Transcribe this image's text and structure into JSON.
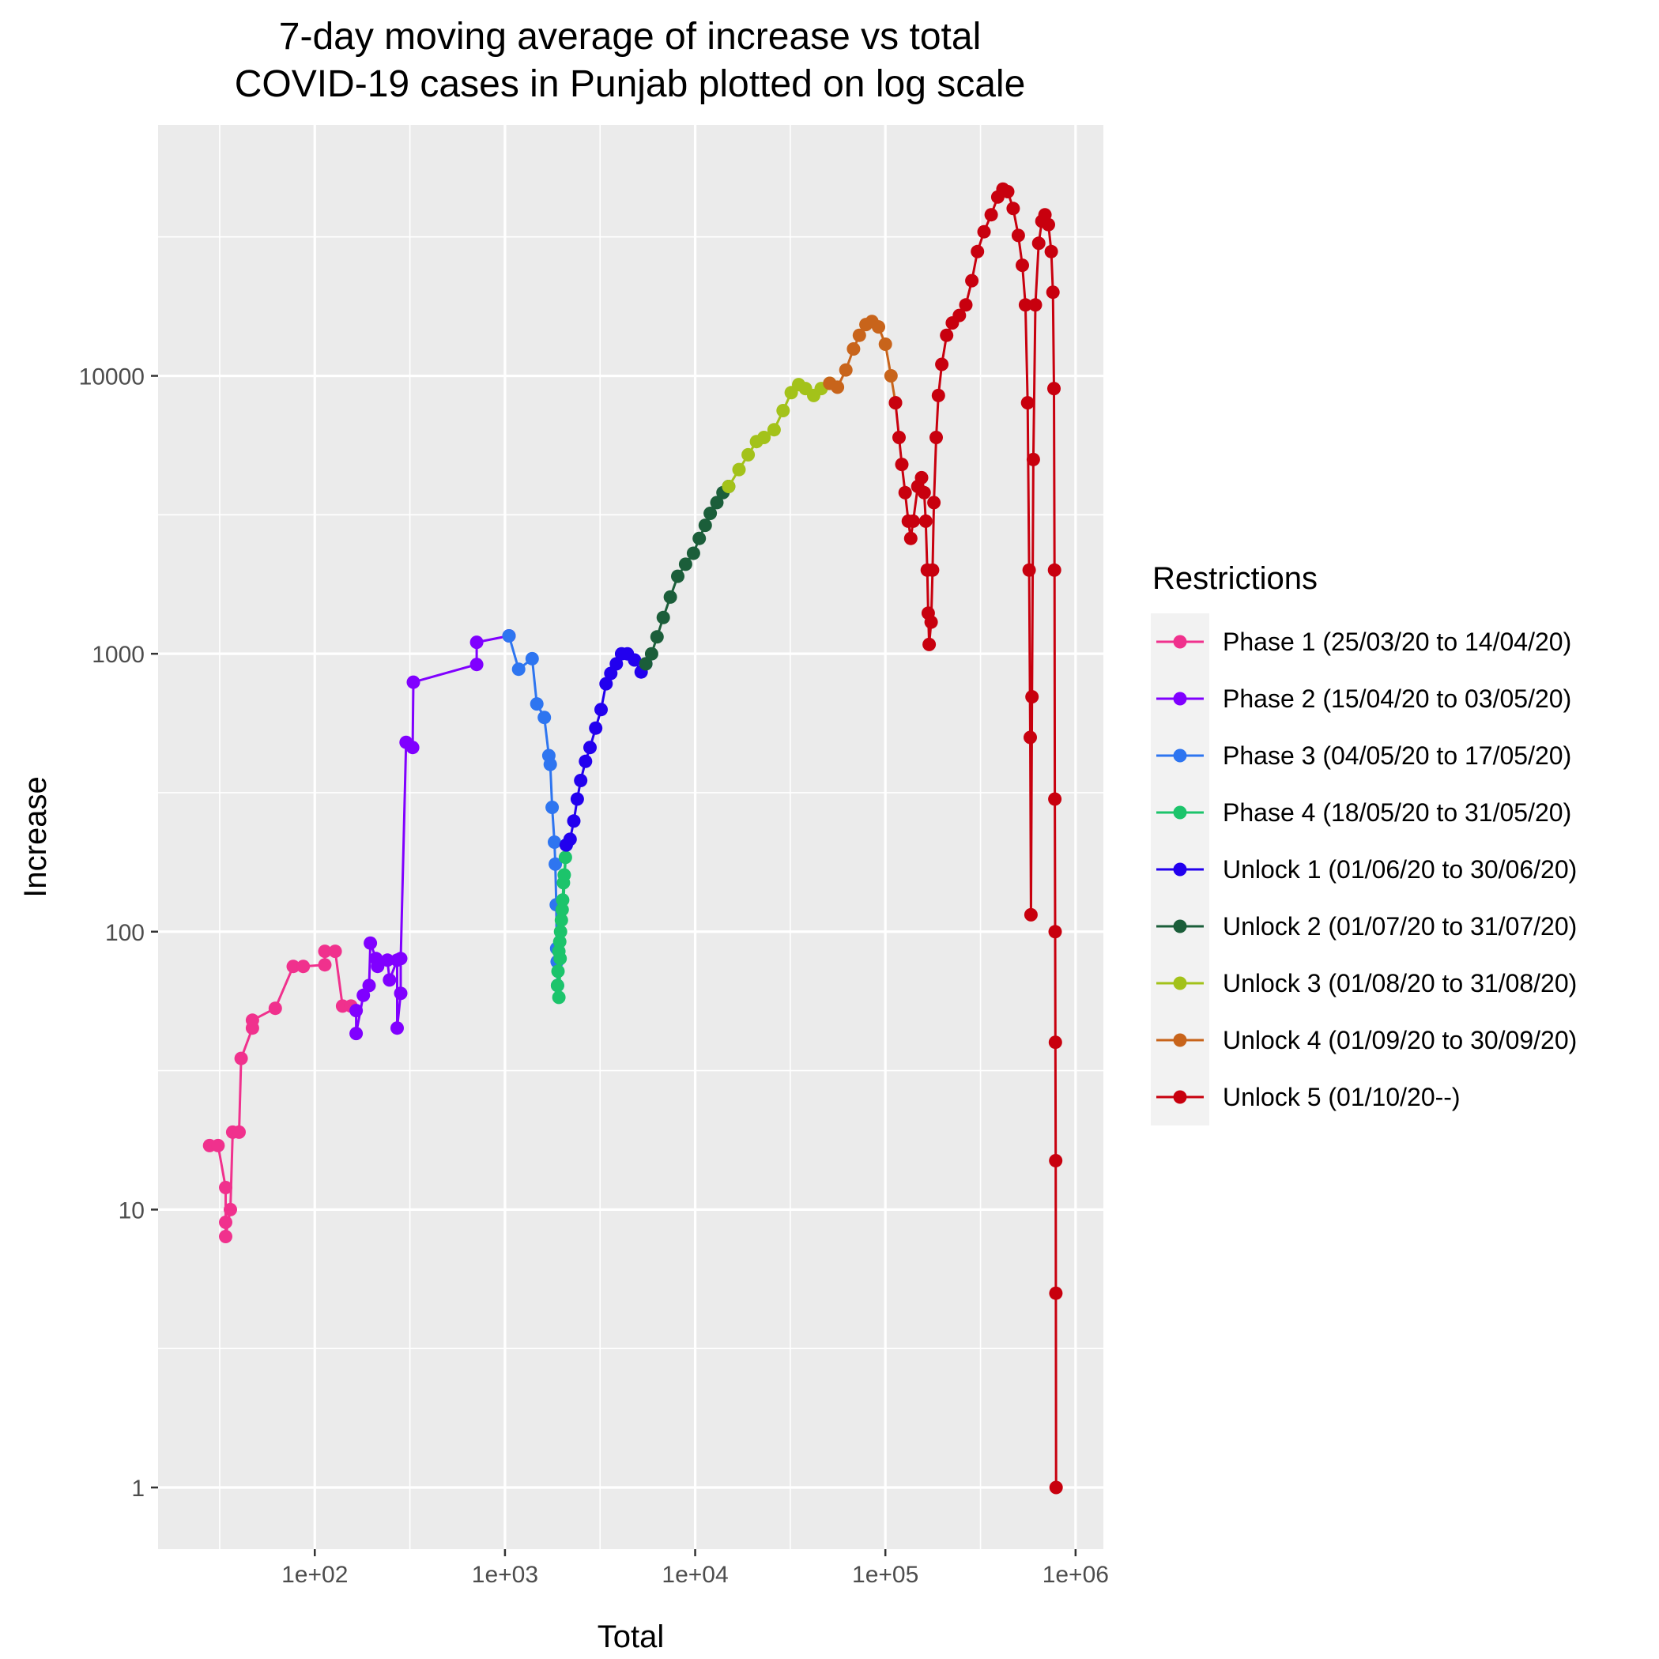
{
  "chart_data": {
    "type": "line",
    "title": [
      "7-day moving average of increase vs total",
      "COVID-19 cases in Punjab plotted on log scale"
    ],
    "xlabel": "Total",
    "ylabel": "Increase",
    "x_scale": "log10",
    "y_scale": "log10",
    "xlim": [
      15,
      1400000
    ],
    "ylim": [
      0.6,
      80000
    ],
    "x_ticks": [
      {
        "value": 100,
        "label": "1e+02"
      },
      {
        "value": 1000,
        "label": "1e+03"
      },
      {
        "value": 10000,
        "label": "1e+04"
      },
      {
        "value": 100000,
        "label": "1e+05"
      },
      {
        "value": 1000000,
        "label": "1e+06"
      }
    ],
    "y_ticks": [
      {
        "value": 1,
        "label": "1"
      },
      {
        "value": 10,
        "label": "10"
      },
      {
        "value": 100,
        "label": "100"
      },
      {
        "value": 1000,
        "label": "1000"
      },
      {
        "value": 10000,
        "label": "10000"
      }
    ],
    "grid": true,
    "legend": {
      "title": "Restrictions",
      "position": "right"
    },
    "series": [
      {
        "name": "Phase 1 (25/03/20 to 14/04/20)",
        "color": "#F0318D",
        "points": [
          [
            28,
            17
          ],
          [
            31,
            17
          ],
          [
            34,
            12
          ],
          [
            34,
            9
          ],
          [
            34,
            8
          ],
          [
            36,
            10
          ],
          [
            37,
            19
          ],
          [
            40,
            19
          ],
          [
            41,
            35
          ],
          [
            47,
            45
          ],
          [
            47,
            48
          ],
          [
            62,
            53
          ],
          [
            77,
            75
          ],
          [
            87,
            75
          ],
          [
            113,
            76
          ],
          [
            113,
            85
          ],
          [
            128,
            85
          ],
          [
            140,
            54
          ],
          [
            155,
            54
          ]
        ]
      },
      {
        "name": "Phase 2 (15/04/20 to 03/05/20)",
        "color": "#8000FF",
        "points": [
          [
            165,
            52
          ],
          [
            165,
            43
          ],
          [
            180,
            59
          ],
          [
            193,
            64
          ],
          [
            196,
            91
          ],
          [
            210,
            80
          ],
          [
            214,
            75
          ],
          [
            241,
            79
          ],
          [
            247,
            67
          ],
          [
            271,
            79
          ],
          [
            271,
            45
          ],
          [
            283,
            60
          ],
          [
            283,
            80
          ],
          [
            302,
            480
          ],
          [
            327,
            460
          ],
          [
            330,
            790
          ],
          [
            710,
            915
          ],
          [
            710,
            1100
          ],
          [
            1050,
            1160
          ]
        ]
      },
      {
        "name": "Phase 3 (04/05/20 to 17/05/20)",
        "color": "#2E75F0",
        "points": [
          [
            1050,
            1160
          ],
          [
            1180,
            880
          ],
          [
            1390,
            960
          ],
          [
            1470,
            660
          ],
          [
            1610,
            590
          ],
          [
            1700,
            430
          ],
          [
            1730,
            400
          ],
          [
            1770,
            280
          ],
          [
            1820,
            210
          ],
          [
            1840,
            175
          ],
          [
            1860,
            125
          ],
          [
            1870,
            87
          ],
          [
            1880,
            78
          ],
          [
            1890,
            64
          ]
        ]
      },
      {
        "name": "Phase 4 (18/05/20 to 31/05/20)",
        "color": "#1CC46B",
        "points": [
          [
            1890,
            64
          ],
          [
            1900,
            72
          ],
          [
            1920,
            85
          ],
          [
            1940,
            92
          ],
          [
            1960,
            100
          ],
          [
            1980,
            110
          ],
          [
            2000,
            120
          ],
          [
            2010,
            130
          ],
          [
            2030,
            150
          ],
          [
            2050,
            160
          ],
          [
            2080,
            185
          ],
          [
            2100,
            205
          ],
          [
            1920,
            58
          ],
          [
            1950,
            80
          ]
        ]
      },
      {
        "name": "Unlock 1 (01/06/20 to 30/06/20)",
        "color": "#2200EE",
        "points": [
          [
            2100,
            205
          ],
          [
            2200,
            215
          ],
          [
            2300,
            250
          ],
          [
            2400,
            300
          ],
          [
            2500,
            350
          ],
          [
            2650,
            410
          ],
          [
            2800,
            460
          ],
          [
            3000,
            540
          ],
          [
            3200,
            630
          ],
          [
            3400,
            780
          ],
          [
            3600,
            850
          ],
          [
            3850,
            920
          ],
          [
            4100,
            1000
          ],
          [
            4400,
            1000
          ],
          [
            4800,
            950
          ],
          [
            5200,
            860
          ],
          [
            5500,
            920
          ]
        ]
      },
      {
        "name": "Unlock 2 (01/07/20 to 31/07/20)",
        "color": "#1B5E3A",
        "points": [
          [
            5500,
            920
          ],
          [
            5900,
            1000
          ],
          [
            6300,
            1150
          ],
          [
            6800,
            1350
          ],
          [
            7400,
            1600
          ],
          [
            8100,
            1900
          ],
          [
            8900,
            2100
          ],
          [
            9800,
            2300
          ],
          [
            10500,
            2600
          ],
          [
            11300,
            2900
          ],
          [
            12000,
            3200
          ],
          [
            13000,
            3500
          ],
          [
            14000,
            3800
          ],
          [
            15000,
            4000
          ]
        ]
      },
      {
        "name": "Unlock 3 (01/08/20 to 31/08/20)",
        "color": "#A3C21A",
        "points": [
          [
            15000,
            4000
          ],
          [
            17000,
            4600
          ],
          [
            19000,
            5200
          ],
          [
            21000,
            5800
          ],
          [
            23000,
            6000
          ],
          [
            26000,
            6400
          ],
          [
            29000,
            7500
          ],
          [
            32000,
            8700
          ],
          [
            35000,
            9300
          ],
          [
            38000,
            9000
          ],
          [
            42000,
            8500
          ],
          [
            46000,
            9000
          ],
          [
            51000,
            9400
          ]
        ]
      },
      {
        "name": "Unlock 4 (01/09/20 to 30/09/20)",
        "color": "#C8641B",
        "points": [
          [
            51000,
            9400
          ],
          [
            56000,
            9100
          ],
          [
            62000,
            10500
          ],
          [
            68000,
            12500
          ],
          [
            73000,
            14000
          ],
          [
            79000,
            15300
          ],
          [
            85000,
            15700
          ],
          [
            92000,
            15000
          ],
          [
            100000,
            13000
          ],
          [
            107000,
            10000
          ],
          [
            113000,
            8000
          ]
        ]
      },
      {
        "name": "Unlock 5 (01/10/20--)",
        "color": "#C8000E",
        "points": [
          [
            113000,
            8000
          ],
          [
            118000,
            6000
          ],
          [
            122000,
            4800
          ],
          [
            127000,
            3800
          ],
          [
            132000,
            3000
          ],
          [
            136000,
            2600
          ],
          [
            140000,
            3000
          ],
          [
            148000,
            4000
          ],
          [
            155000,
            4300
          ],
          [
            160000,
            3800
          ],
          [
            163000,
            3000
          ],
          [
            166000,
            2000
          ],
          [
            168000,
            1400
          ],
          [
            170000,
            1080
          ],
          [
            174000,
            1300
          ],
          [
            177000,
            2000
          ],
          [
            180000,
            3500
          ],
          [
            185000,
            6000
          ],
          [
            190000,
            8500
          ],
          [
            198000,
            11000
          ],
          [
            210000,
            14000
          ],
          [
            225000,
            15500
          ],
          [
            245000,
            16500
          ],
          [
            265000,
            18000
          ],
          [
            285000,
            22000
          ],
          [
            305000,
            28000
          ],
          [
            330000,
            33000
          ],
          [
            360000,
            38000
          ],
          [
            390000,
            44000
          ],
          [
            415000,
            47000
          ],
          [
            440000,
            46000
          ],
          [
            470000,
            40000
          ],
          [
            500000,
            32000
          ],
          [
            525000,
            25000
          ],
          [
            545000,
            18000
          ],
          [
            560000,
            8000
          ],
          [
            570000,
            2000
          ],
          [
            578000,
            500
          ],
          [
            583000,
            115
          ],
          [
            590000,
            700
          ],
          [
            600000,
            5000
          ],
          [
            615000,
            18000
          ],
          [
            640000,
            30000
          ],
          [
            665000,
            36000
          ],
          [
            690000,
            38000
          ],
          [
            720000,
            35000
          ],
          [
            745000,
            28000
          ],
          [
            760000,
            20000
          ],
          [
            770000,
            9000
          ],
          [
            775000,
            2000
          ],
          [
            778000,
            300
          ],
          [
            781000,
            100
          ],
          [
            783000,
            40
          ],
          [
            786000,
            15
          ],
          [
            788000,
            5
          ],
          [
            790000,
            1
          ]
        ]
      }
    ]
  }
}
